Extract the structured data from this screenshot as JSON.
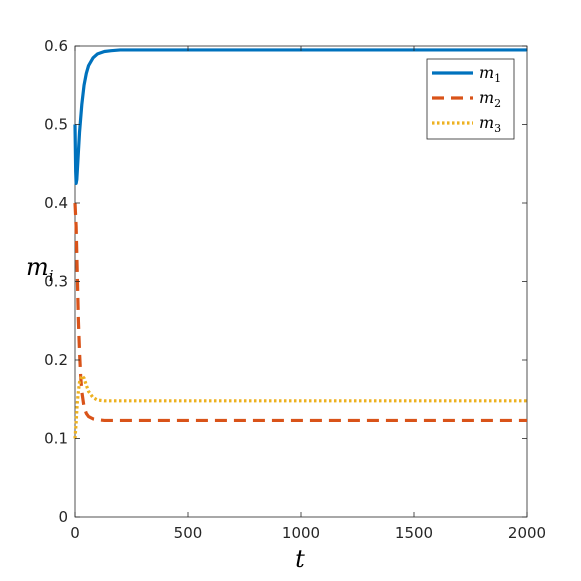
{
  "chart_data": {
    "type": "line",
    "xlabel": "t",
    "ylabel": {
      "base": "m",
      "sub": "i"
    },
    "xlim": [
      0,
      2000
    ],
    "ylim": [
      0,
      0.6
    ],
    "x_ticks": [
      0,
      500,
      1000,
      1500,
      2000
    ],
    "y_ticks": [
      0,
      0.1,
      0.2,
      0.3,
      0.4,
      0.5,
      0.6
    ],
    "x_tick_labels": [
      "0",
      "500",
      "1000",
      "1500",
      "2000"
    ],
    "y_tick_labels": [
      "0",
      "0.1",
      "0.2",
      "0.3",
      "0.4",
      "0.5",
      "0.6"
    ],
    "grid": false,
    "legend_position": "top-right",
    "series": [
      {
        "name": "m1",
        "label_base": "m",
        "label_sub": "1",
        "color": "#0072BD",
        "dash": "solid",
        "x": [
          0,
          3,
          5,
          8,
          10,
          15,
          20,
          30,
          40,
          50,
          60,
          80,
          100,
          130,
          160,
          200,
          300,
          500,
          1000,
          1500,
          2000
        ],
        "y": [
          0.5,
          0.44,
          0.425,
          0.43,
          0.44,
          0.465,
          0.49,
          0.525,
          0.55,
          0.565,
          0.575,
          0.585,
          0.59,
          0.593,
          0.594,
          0.595,
          0.595,
          0.595,
          0.595,
          0.595,
          0.595
        ]
      },
      {
        "name": "m2",
        "label_base": "m",
        "label_sub": "2",
        "color": "#D95319",
        "dash": "dashed",
        "x": [
          0,
          5,
          10,
          15,
          20,
          25,
          30,
          40,
          50,
          60,
          80,
          100,
          130,
          160,
          200,
          500,
          1000,
          1500,
          2000
        ],
        "y": [
          0.4,
          0.37,
          0.31,
          0.25,
          0.21,
          0.18,
          0.16,
          0.14,
          0.132,
          0.128,
          0.125,
          0.124,
          0.123,
          0.123,
          0.123,
          0.123,
          0.123,
          0.123,
          0.123
        ]
      },
      {
        "name": "m3",
        "label_base": "m",
        "label_sub": "3",
        "color": "#EDB120",
        "dash": "dotted",
        "x": [
          0,
          5,
          10,
          15,
          20,
          30,
          40,
          50,
          60,
          80,
          100,
          130,
          160,
          200,
          500,
          1000,
          1500,
          2000
        ],
        "y": [
          0.1,
          0.12,
          0.145,
          0.16,
          0.172,
          0.18,
          0.177,
          0.168,
          0.16,
          0.152,
          0.149,
          0.148,
          0.148,
          0.148,
          0.148,
          0.148,
          0.148,
          0.148
        ]
      }
    ]
  }
}
